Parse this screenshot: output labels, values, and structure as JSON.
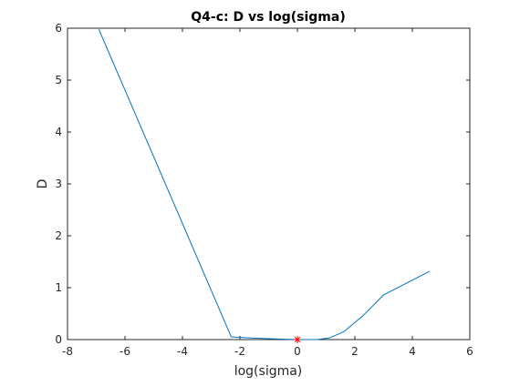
{
  "chart_data": {
    "type": "line",
    "title": "Q4-c: D vs log(sigma)",
    "xlabel": "log(sigma)",
    "ylabel": "D",
    "xlim": [
      -8,
      6
    ],
    "ylim": [
      0,
      6
    ],
    "xticks": [
      -8,
      -6,
      -4,
      -2,
      0,
      2,
      4,
      6
    ],
    "yticks": [
      0,
      1,
      2,
      3,
      4,
      5,
      6
    ],
    "grid": false,
    "series": [
      {
        "color": "#0072BD",
        "x": [
          -6.91,
          -2.3,
          -1.61,
          -0.69,
          0,
          0.69,
          1.1,
          1.61,
          2.3,
          3.0,
          4.61
        ],
        "y": [
          5.98,
          0.05,
          0.03,
          0.01,
          0.0,
          0.0,
          0.03,
          0.15,
          0.47,
          0.86,
          1.32
        ]
      }
    ],
    "marker": {
      "x": 0,
      "y": 0,
      "symbol": "*",
      "color": "#FF0000"
    }
  }
}
